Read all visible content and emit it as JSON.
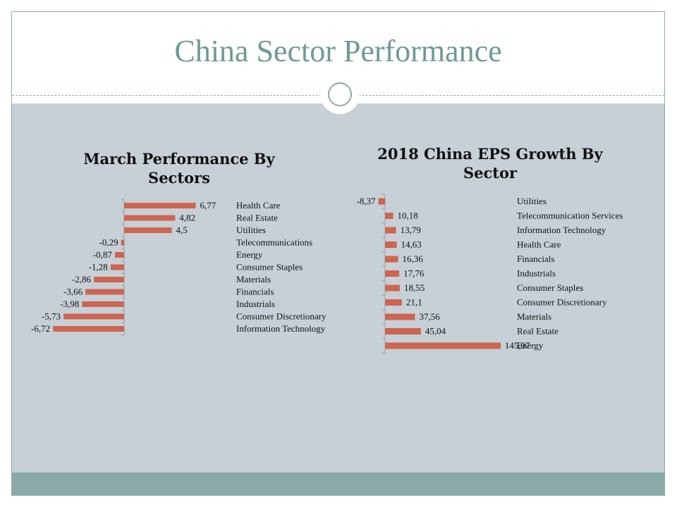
{
  "slide": {
    "title": "China Sector Performance"
  },
  "colors": {
    "bar": "#cd6551",
    "accent": "#8aaaa8",
    "title": "#6f9a95",
    "background": "#c6d0d6"
  },
  "chart_data": [
    {
      "type": "bar",
      "orientation": "horizontal",
      "title": "March Performance By Sectors",
      "categories": [
        "Health Care",
        "Real Estate",
        "Utilities",
        "Telecommunications",
        "Energy",
        "Consumer Staples",
        "Materials",
        "Financials",
        "Industrials",
        "Consumer Discretionary",
        "Information Technology"
      ],
      "values": [
        6.77,
        4.82,
        4.5,
        -0.29,
        -0.87,
        -1.28,
        -2.86,
        -3.66,
        -3.98,
        -5.73,
        -6.72
      ],
      "value_labels": [
        "6,77",
        "4,82",
        "4,5",
        "-0,29",
        "-0,87",
        "-1,28",
        "-2,86",
        "-3,66",
        "-3,98",
        "-5,73",
        "-6,72"
      ],
      "grid": false,
      "legend": "none"
    },
    {
      "type": "bar",
      "orientation": "horizontal",
      "title": "2018 China EPS Growth By Sector",
      "categories": [
        "Utilities",
        "Telecommunication Services",
        "Information Technology",
        "Health Care",
        "Financials",
        "Industrials",
        "Consumer Staples",
        "Consumer Discretionary",
        "Materials",
        "Real Estate",
        "Energy"
      ],
      "values": [
        -8.37,
        10.18,
        13.79,
        14.63,
        16.36,
        17.76,
        18.55,
        21.1,
        37.56,
        45.04,
        145.07
      ],
      "value_labels": [
        "-8,37",
        "10,18",
        "13,79",
        "14,63",
        "16,36",
        "17,76",
        "18,55",
        "21,1",
        "37,56",
        "45,04",
        "145,07"
      ],
      "grid": false,
      "legend": "none"
    }
  ]
}
